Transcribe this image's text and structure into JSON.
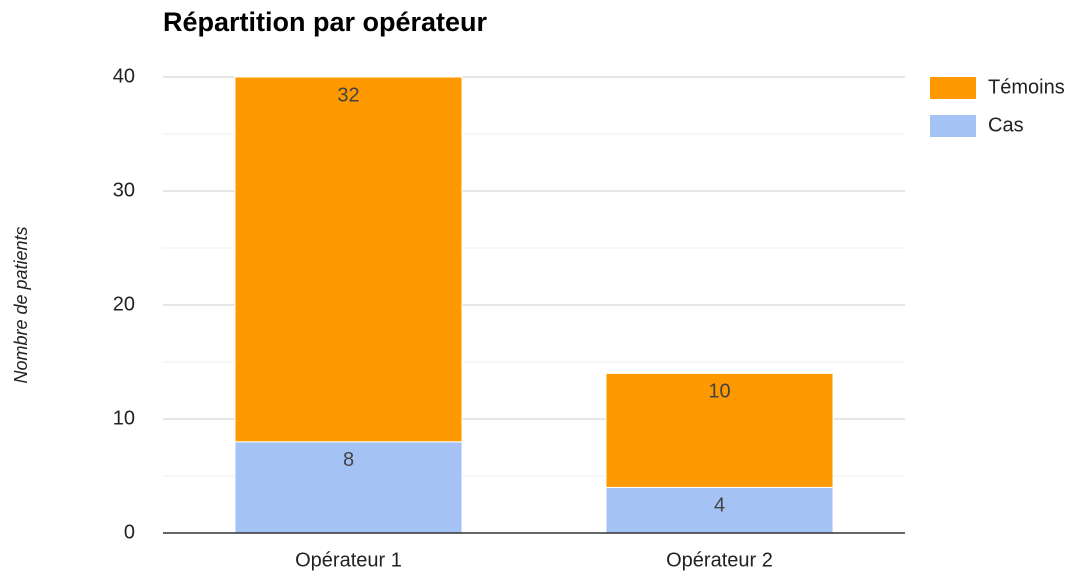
{
  "chart_data": {
    "type": "stacked_bar",
    "title": "Répartition par opérateur",
    "y_label": "Nombre de patients",
    "categories": [
      "Opérateur 1",
      "Opérateur 2"
    ],
    "series": [
      {
        "name": "Cas",
        "color": "#a4c2f4",
        "values": [
          8,
          4
        ]
      },
      {
        "name": "Témoins",
        "color": "#ff9900",
        "values": [
          32,
          10
        ]
      }
    ],
    "ylim": [
      0,
      40
    ],
    "yticks": [
      0,
      10,
      20,
      30,
      40
    ],
    "minor_yticks": [
      5,
      15,
      25,
      35
    ],
    "grid": true,
    "legend": "right"
  }
}
